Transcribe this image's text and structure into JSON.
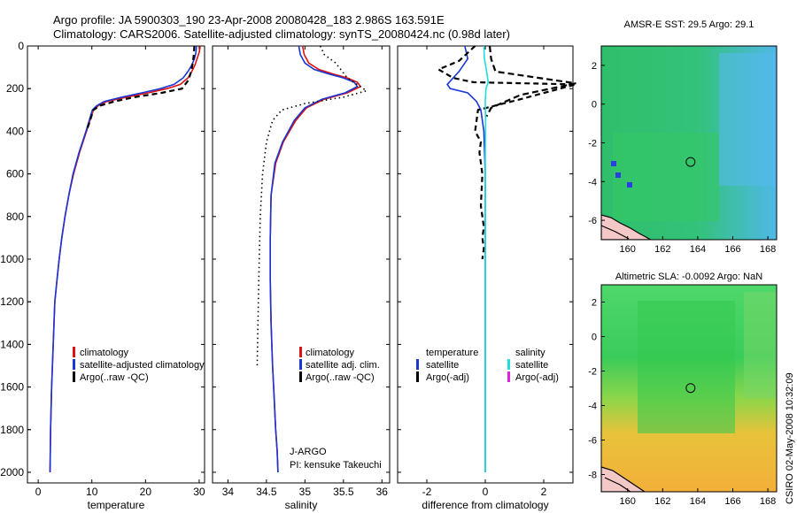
{
  "header": {
    "line1": "Argo profile: JA 5900303_190 23-Apr-2008 20080428_183 2.986S 163.591E",
    "line2": "Climatology: CARS2006. Satellite-adjusted climatology: synTS_20080424.nc (0.98d later)"
  },
  "side_stamp": "CSIRO 02-May-2008 10:32:09",
  "chart_data": [
    {
      "id": "temperature",
      "type": "line",
      "xlabel": "temperature",
      "xlim": [
        -2,
        31
      ],
      "ylim": [
        2050,
        0
      ],
      "xticks": [
        0,
        10,
        20,
        30
      ],
      "yticks": [
        0,
        200,
        400,
        600,
        800,
        1000,
        1200,
        1400,
        1600,
        1800,
        2000
      ],
      "legend": [
        "climatology",
        "satellite-adjusted climatology",
        "Argo(..raw -QC)"
      ],
      "legend_colors": [
        "#dd1111",
        "#1a35d6",
        "#000000"
      ],
      "series": [
        {
          "name": "climatology",
          "color": "#dd1111",
          "style": "solid",
          "x": [
            30.2,
            30.0,
            29.6,
            29.2,
            28.6,
            27.9,
            26.5,
            24.0,
            20.5,
            16.5,
            12.8,
            11.2,
            10.3,
            9.0,
            7.7,
            6.6,
            5.7,
            5.0,
            4.4,
            3.9,
            3.5,
            3.1,
            2.8,
            2.5,
            2.3,
            2.2
          ],
          "y": [
            0,
            30,
            60,
            90,
            120,
            150,
            180,
            200,
            220,
            240,
            260,
            280,
            300,
            400,
            500,
            600,
            700,
            800,
            900,
            1000,
            1100,
            1200,
            1400,
            1600,
            1800,
            2000
          ]
        },
        {
          "name": "satellite-adjusted climatology",
          "color": "#1a35d6",
          "style": "solid",
          "x": [
            29.5,
            29.4,
            29.1,
            28.6,
            27.9,
            27.0,
            25.3,
            22.8,
            19.3,
            15.6,
            12.3,
            10.9,
            10.1,
            8.9,
            7.6,
            6.5,
            5.7,
            5.0,
            4.4,
            3.9,
            3.5,
            3.1,
            2.8,
            2.5,
            2.3,
            2.2
          ],
          "y": [
            0,
            30,
            60,
            90,
            120,
            150,
            180,
            200,
            220,
            240,
            260,
            280,
            300,
            400,
            500,
            600,
            700,
            800,
            900,
            1000,
            1100,
            1200,
            1400,
            1600,
            1800,
            2000
          ]
        },
        {
          "name": "Argo(..raw -QC)",
          "color": "#000000",
          "style": "dash",
          "x": [
            29.1,
            29.0,
            28.8,
            28.5,
            28.0,
            26.8,
            23.0,
            18.0,
            14.2,
            11.5,
            10.3,
            9.0
          ],
          "y": [
            0,
            40,
            80,
            120,
            160,
            200,
            220,
            240,
            260,
            280,
            300,
            400
          ]
        }
      ]
    },
    {
      "id": "salinity",
      "type": "line",
      "xlabel": "salinity",
      "xlim": [
        33.8,
        36.1
      ],
      "ylim": [
        2050,
        0
      ],
      "xticks": [
        34,
        34.5,
        35,
        35.5,
        36
      ],
      "yticks": [
        0,
        200,
        400,
        600,
        800,
        1000,
        1200,
        1400,
        1600,
        1800,
        2000
      ],
      "legend": [
        "climatology",
        "satellite adj. clim.",
        "Argo(..raw -QC)"
      ],
      "legend_colors": [
        "#dd1111",
        "#1a35d6",
        "#000000"
      ],
      "annotation": [
        "J-ARGO",
        "PI: kensuke Takeuchi"
      ],
      "series": [
        {
          "name": "climatology",
          "color": "#dd1111",
          "style": "solid",
          "x": [
            34.97,
            34.99,
            35.05,
            35.18,
            35.35,
            35.55,
            35.68,
            35.72,
            35.55,
            35.25,
            35.02,
            34.88,
            34.72,
            34.62,
            34.56,
            34.55,
            34.55,
            34.56,
            34.58,
            34.6,
            34.62,
            34.64,
            34.65
          ],
          "y": [
            0,
            40,
            80,
            110,
            130,
            150,
            170,
            190,
            220,
            250,
            290,
            350,
            450,
            550,
            700,
            900,
            1100,
            1300,
            1500,
            1650,
            1800,
            1900,
            2000
          ]
        },
        {
          "name": "satellite adj. clim.",
          "color": "#1a35d6",
          "style": "solid",
          "x": [
            34.92,
            34.94,
            35.0,
            35.12,
            35.3,
            35.5,
            35.64,
            35.68,
            35.52,
            35.22,
            35.0,
            34.86,
            34.71,
            34.61,
            34.56,
            34.55,
            34.55,
            34.56,
            34.58,
            34.6,
            34.62,
            34.64,
            34.65
          ],
          "y": [
            0,
            40,
            80,
            110,
            130,
            150,
            170,
            190,
            220,
            250,
            290,
            350,
            450,
            550,
            700,
            900,
            1100,
            1300,
            1500,
            1650,
            1800,
            1900,
            2000
          ]
        },
        {
          "name": "Argo(..raw -QC)",
          "color": "#000000",
          "style": "dot",
          "x": [
            35.2,
            35.25,
            35.4,
            35.55,
            35.8,
            35.5,
            35.0,
            34.7,
            34.58,
            34.5,
            34.45,
            34.42,
            34.4,
            34.38
          ],
          "y": [
            0,
            40,
            80,
            150,
            210,
            240,
            270,
            300,
            350,
            450,
            600,
            800,
            1100,
            1500
          ]
        }
      ]
    },
    {
      "id": "difference",
      "type": "line",
      "xlabel": "difference from climatology",
      "xlim": [
        -3.0,
        3.0
      ],
      "ylim": [
        2050,
        0
      ],
      "xticks": [
        -2,
        0,
        2
      ],
      "yticks": [
        0,
        200,
        400,
        600,
        800,
        1000,
        1200,
        1400,
        1600,
        1800,
        2000
      ],
      "legend_title_left": "temperature",
      "legend_title_right": "salinity",
      "legend": [
        "satellite",
        "Argo(-adj)",
        "satellite",
        "Argo(-adj)"
      ],
      "legend_colors": [
        "#1a35d6",
        "#000000",
        "#22dddd",
        "#dd22dd"
      ],
      "series": [
        {
          "name": "satellite",
          "color": "#1a35d6",
          "style": "solid",
          "x": [
            -0.7,
            -0.6,
            -0.9,
            -1.3,
            -1.2,
            -0.6,
            -0.3,
            -0.15,
            -0.05,
            0,
            0,
            0,
            0
          ],
          "y": [
            0,
            60,
            120,
            180,
            200,
            220,
            260,
            300,
            400,
            600,
            1000,
            1500,
            2000
          ]
        },
        {
          "name": "Argo(-adj)",
          "color": "#000000",
          "style": "dash",
          "x": [
            -0.35,
            -0.9,
            -1.6,
            -1.1,
            -0.4,
            3.1,
            1.2,
            -0.25,
            -0.35,
            -0.15,
            -0.2,
            -0.1,
            -0.15,
            -0.05,
            -0.1,
            -0.05,
            -0.1
          ],
          "y": [
            0,
            70,
            110,
            150,
            170,
            180,
            250,
            300,
            400,
            450,
            500,
            600,
            750,
            850,
            900,
            950,
            1000
          ]
        },
        {
          "name": "satellite",
          "color": "#22dddd",
          "style": "solid",
          "x": [
            -0.05,
            -0.03,
            0.05,
            0.1,
            0.02,
            0,
            0.01,
            0,
            0,
            0,
            0
          ],
          "y": [
            0,
            60,
            120,
            170,
            200,
            260,
            350,
            500,
            800,
            1400,
            2000
          ]
        },
        {
          "name": "Argo(-adj)",
          "color": "#000000",
          "style": "dash2",
          "x": [
            0.15,
            0.2,
            0.35,
            3.1,
            1.2,
            0.2,
            0.05
          ],
          "y": [
            0,
            60,
            120,
            175,
            230,
            290,
            330
          ]
        }
      ]
    },
    {
      "id": "sst_map",
      "type": "heatmap",
      "title": "AMSR-E SST: 29.5 Argo: 29.1",
      "xlim": [
        158.5,
        168.5
      ],
      "ylim": [
        -7,
        3
      ],
      "xticks": [
        160,
        162,
        164,
        166,
        168
      ],
      "yticks": [
        2,
        0,
        -2,
        -4,
        -6
      ],
      "marker": {
        "lon": 163.591,
        "lat": -2.986
      }
    },
    {
      "id": "sla_map",
      "type": "heatmap",
      "title": "Altimetric SLA: -0.0092 Argo: NaN",
      "xlim": [
        158.5,
        168.5
      ],
      "ylim": [
        -9,
        3
      ],
      "xticks": [
        160,
        162,
        164,
        166,
        168
      ],
      "yticks": [
        2,
        0,
        -2,
        -4,
        -6,
        -8
      ],
      "marker": {
        "lon": 163.591,
        "lat": -2.986
      }
    }
  ]
}
